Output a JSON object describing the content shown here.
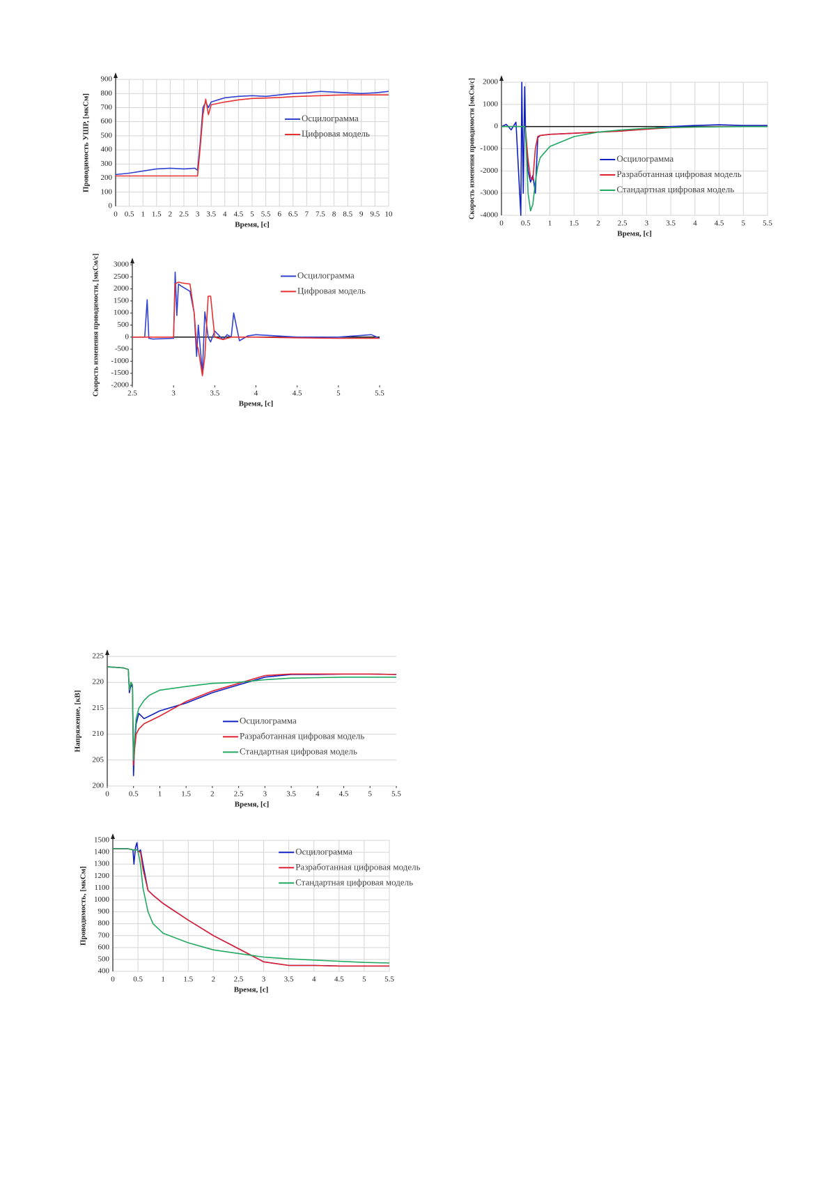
{
  "chart_data": [
    {
      "type": "line",
      "x_label": "Время, [с]",
      "y_label": "Проводимость УШР, [мкСм]",
      "xlim": [
        0,
        10
      ],
      "xticks": [
        0,
        0.5,
        1,
        1.5,
        2,
        2.5,
        3,
        3.5,
        4,
        4.5,
        5,
        5.5,
        6,
        6.5,
        7,
        7.5,
        8,
        8.5,
        9,
        9.5,
        10
      ],
      "ylim": [
        0,
        900
      ],
      "yticks": [
        0,
        100,
        200,
        300,
        400,
        500,
        600,
        700,
        800,
        900
      ],
      "grid": "both",
      "zero_line": false,
      "legend": "right",
      "x": [
        0,
        0.5,
        1,
        1.5,
        2,
        2.5,
        2.9,
        3.0,
        3.1,
        3.2,
        3.3,
        3.4,
        3.5,
        4,
        4.5,
        5,
        5.5,
        6,
        6.5,
        7,
        7.5,
        8,
        8.5,
        9,
        9.5,
        10
      ],
      "series": [
        {
          "name": "Осцилограмма",
          "color": "#3040d0",
          "values": [
            225,
            235,
            250,
            265,
            270,
            265,
            270,
            255,
            450,
            700,
            740,
            700,
            740,
            770,
            780,
            785,
            780,
            790,
            800,
            805,
            815,
            810,
            805,
            800,
            805,
            815
          ]
        },
        {
          "name": "Цифровая модель",
          "color": "#e83030",
          "values": [
            215,
            215,
            215,
            215,
            215,
            215,
            215,
            215,
            420,
            650,
            760,
            650,
            720,
            740,
            755,
            765,
            768,
            772,
            778,
            782,
            785,
            788,
            790,
            790,
            790,
            790
          ]
        }
      ]
    },
    {
      "type": "line",
      "x_label": "Время, [с]",
      "y_label": "Скорость изменения проводимости [мкСм/с]",
      "xlim": [
        0,
        5.5
      ],
      "xticks": [
        0,
        0.5,
        1,
        1.5,
        2,
        2.5,
        3,
        3.5,
        4,
        4.5,
        5,
        5.5
      ],
      "ylim": [
        -4000,
        2000
      ],
      "yticks": [
        -4000,
        -3000,
        -2000,
        -1000,
        0,
        1000,
        2000
      ],
      "grid": "both",
      "zero_line": true,
      "legend": "lower right",
      "x": [
        0,
        0.1,
        0.2,
        0.3,
        0.4,
        0.42,
        0.45,
        0.48,
        0.5,
        0.55,
        0.6,
        0.65,
        0.7,
        0.75,
        0.8,
        1,
        1.5,
        2,
        2.5,
        3,
        3.5,
        4,
        4.5,
        5,
        5.5
      ],
      "series": [
        {
          "name": "Осцилограмма",
          "color": "#1020c0",
          "values": [
            0,
            100,
            -150,
            200,
            -4000,
            2000,
            -3000,
            1800,
            -500,
            -2000,
            -2500,
            -2200,
            -3000,
            -500,
            -400,
            -350,
            -300,
            -250,
            -200,
            -100,
            0,
            50,
            80,
            50,
            50
          ]
        },
        {
          "name": "Разработанная цифровая модель",
          "color": "#e02030",
          "values": [
            0,
            0,
            0,
            0,
            0,
            0,
            0,
            0,
            -200,
            -1500,
            -2300,
            -2400,
            -1000,
            -450,
            -400,
            -350,
            -300,
            -250,
            -200,
            -120,
            -50,
            -20,
            0,
            0,
            0
          ]
        },
        {
          "name": "Стандартная цифровая модель",
          "color": "#20a860",
          "values": [
            0,
            0,
            0,
            0,
            0,
            0,
            0,
            0,
            -300,
            -3000,
            -3800,
            -3500,
            -2500,
            -1800,
            -1400,
            -900,
            -450,
            -250,
            -150,
            -80,
            -40,
            -20,
            -10,
            0,
            0
          ]
        }
      ]
    },
    {
      "type": "line",
      "x_label": "Время, [с]",
      "y_label": "Скорость изменения проводимости, [мкСм/с]",
      "xlim": [
        2.5,
        5.5
      ],
      "xticks": [
        2.5,
        3,
        3.5,
        4,
        4.5,
        5,
        5.5
      ],
      "ylim": [
        -2000,
        3000
      ],
      "yticks": [
        -2000,
        -1500,
        -1000,
        -500,
        0,
        500,
        1000,
        1500,
        2000,
        2500,
        3000
      ],
      "grid": "none",
      "zero_line": true,
      "legend": "upper right",
      "x": [
        2.5,
        2.65,
        2.68,
        2.7,
        2.75,
        3.0,
        3.02,
        3.04,
        3.06,
        3.1,
        3.2,
        3.25,
        3.28,
        3.3,
        3.35,
        3.38,
        3.42,
        3.45,
        3.5,
        3.6,
        3.65,
        3.7,
        3.73,
        3.8,
        3.9,
        4,
        4.5,
        5,
        5.4,
        5.5
      ],
      "series": [
        {
          "name": "Осцилограмма",
          "color": "#3040d0",
          "values": [
            0,
            0,
            1550,
            -50,
            -80,
            -50,
            2700,
            900,
            2200,
            2100,
            1900,
            1000,
            -800,
            500,
            -1500,
            1050,
            0,
            -200,
            250,
            -100,
            100,
            0,
            1000,
            -150,
            50,
            100,
            0,
            0,
            100,
            -50
          ]
        },
        {
          "name": "Цифровая модель",
          "color": "#e83030",
          "values": [
            0,
            0,
            0,
            0,
            0,
            0,
            2200,
            2250,
            2280,
            2250,
            2200,
            1000,
            -300,
            -500,
            -1600,
            -800,
            1700,
            1700,
            0,
            -100,
            -50,
            0,
            0,
            0,
            0,
            0,
            -30,
            -50,
            -50,
            -50
          ]
        }
      ]
    },
    {
      "type": "line",
      "x_label": "Время, [с]",
      "y_label": "Напряжение, [кВ]",
      "xlim": [
        0,
        5.5
      ],
      "xticks": [
        0,
        0.5,
        1,
        1.5,
        2,
        2.5,
        3,
        3.5,
        4,
        4.5,
        5,
        5.5
      ],
      "ylim": [
        200,
        225
      ],
      "yticks": [
        200,
        205,
        210,
        215,
        220,
        225
      ],
      "grid": "y",
      "zero_line": false,
      "legend": "center right",
      "x": [
        0,
        0.3,
        0.4,
        0.42,
        0.45,
        0.48,
        0.5,
        0.52,
        0.55,
        0.6,
        0.7,
        0.8,
        1,
        1.5,
        2,
        2.5,
        3,
        3.5,
        4,
        4.5,
        5,
        5.5
      ],
      "series": [
        {
          "name": "Осцилограмма",
          "color": "#1020c0",
          "values": [
            223,
            222.8,
            222.5,
            218,
            219.5,
            219,
            202,
            208,
            212,
            214,
            213,
            213.5,
            214.5,
            216,
            218,
            219.5,
            221,
            221.5,
            221.5,
            221.6,
            221.6,
            221.5
          ]
        },
        {
          "name": "Разработанная цифровая модель",
          "color": "#e02030",
          "values": [
            223,
            222.8,
            222.5,
            218.5,
            220,
            219.5,
            204,
            207,
            210,
            211,
            212,
            212.5,
            213.5,
            216.3,
            218.3,
            219.8,
            221.3,
            221.6,
            221.6,
            221.6,
            221.6,
            221.5
          ]
        },
        {
          "name": "Стандартная цифровая модель",
          "color": "#20a860",
          "values": [
            223,
            222.8,
            222.5,
            218.5,
            220,
            219.5,
            205,
            209,
            213,
            215,
            216.5,
            217.5,
            218.5,
            219.2,
            219.8,
            220,
            220.5,
            220.8,
            220.9,
            221,
            221,
            221
          ]
        }
      ]
    },
    {
      "type": "line",
      "x_label": "Время, [с]",
      "y_label": "Проводимость, [мкСм]",
      "xlim": [
        0,
        5.5
      ],
      "xticks": [
        0,
        0.5,
        1,
        1.5,
        2,
        2.5,
        3,
        3.5,
        4,
        4.5,
        5,
        5.5
      ],
      "ylim": [
        400,
        1500
      ],
      "yticks": [
        400,
        500,
        600,
        700,
        800,
        900,
        1000,
        1100,
        1200,
        1300,
        1400,
        1500
      ],
      "grid": "both",
      "zero_line": false,
      "legend": "upper right",
      "x": [
        0,
        0.3,
        0.4,
        0.42,
        0.45,
        0.48,
        0.5,
        0.55,
        0.6,
        0.7,
        0.8,
        1,
        1.5,
        2,
        2.5,
        3,
        3.5,
        4,
        4.5,
        5,
        5.5
      ],
      "series": [
        {
          "name": "Осцилограмма",
          "color": "#1020c0",
          "values": [
            1430,
            1430,
            1420,
            1300,
            1440,
            1480,
            1400,
            1420,
            1300,
            1080,
            1040,
            970,
            830,
            700,
            590,
            480,
            450,
            450,
            445,
            445,
            445
          ]
        },
        {
          "name": "Разработанная цифровая модель",
          "color": "#e02030",
          "values": [
            1430,
            1430,
            1420,
            1420,
            1420,
            1420,
            1410,
            1400,
            1260,
            1080,
            1040,
            970,
            830,
            700,
            590,
            480,
            450,
            450,
            445,
            445,
            445
          ]
        },
        {
          "name": "Стандартная цифровая модель",
          "color": "#20a860",
          "values": [
            1430,
            1430,
            1420,
            1420,
            1420,
            1420,
            1410,
            1300,
            1100,
            900,
            800,
            720,
            640,
            580,
            550,
            520,
            505,
            495,
            485,
            475,
            470
          ]
        }
      ]
    }
  ]
}
